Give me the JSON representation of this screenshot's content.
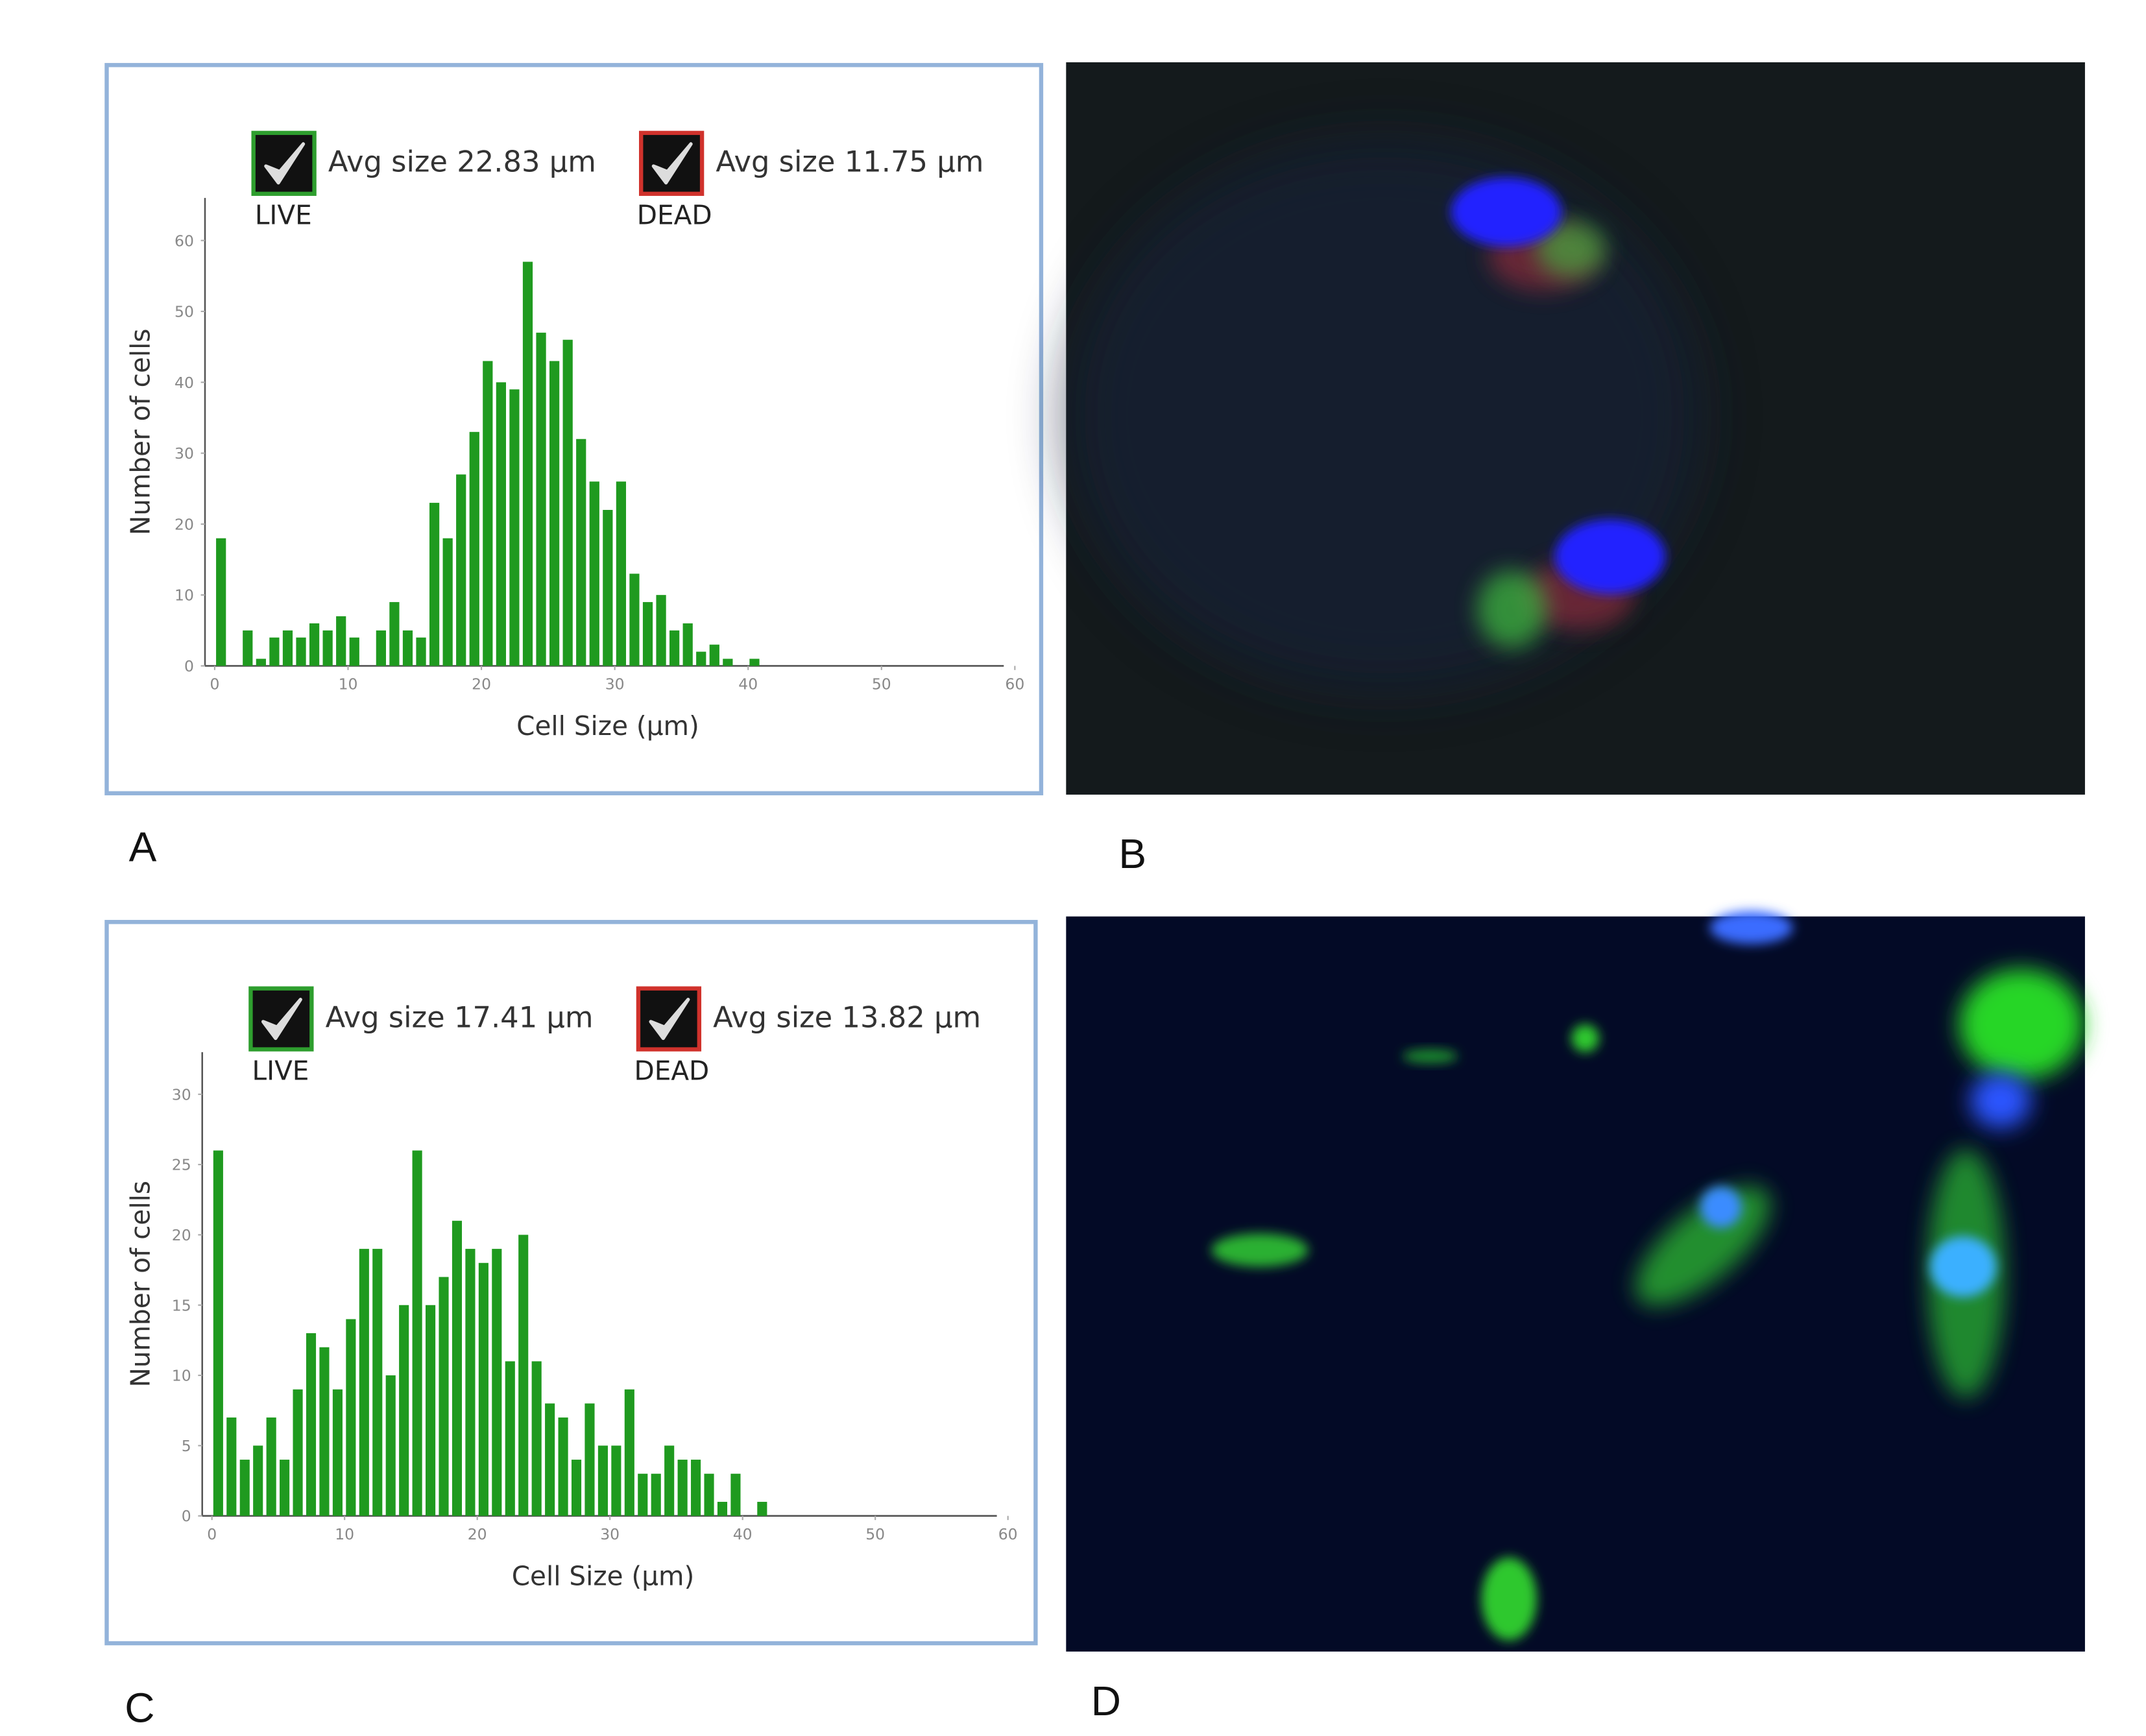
{
  "chart_data": [
    {
      "type": "histogram",
      "x_label": "Cell Size (µm)",
      "y_label": "Number of cells",
      "legend": [
        {
          "name": "LIVE",
          "text": "Avg size 22.83 µm",
          "color": "#2e9e2e"
        },
        {
          "name": "DEAD",
          "text": "Avg size 11.75 µm",
          "color": "#d0322c"
        }
      ],
      "color": "#1f9a1f",
      "bins": [
        0,
        1,
        2,
        3,
        4,
        5,
        6,
        7,
        8,
        9,
        10,
        11,
        12,
        13,
        14,
        15,
        16,
        17,
        18,
        19,
        20,
        21,
        22,
        23,
        24,
        25,
        26,
        27,
        28,
        29,
        30,
        31,
        32,
        33,
        34,
        35,
        36,
        37,
        38,
        39,
        40,
        41
      ],
      "values": [
        18,
        0,
        5,
        1,
        4,
        5,
        4,
        6,
        5,
        7,
        4,
        0,
        5,
        9,
        5,
        4,
        23,
        18,
        27,
        33,
        43,
        40,
        39,
        57,
        47,
        43,
        46,
        32,
        26,
        22,
        26,
        13,
        9,
        10,
        5,
        6,
        2,
        3,
        1,
        0,
        1
      ],
      "xlim": [
        0,
        60
      ],
      "xticks": [
        0,
        10,
        20,
        30,
        40,
        50,
        60
      ],
      "ylim": [
        0,
        66
      ],
      "yticks": [
        0,
        10,
        20,
        30,
        40,
        50,
        60
      ]
    },
    {
      "type": "histogram",
      "x_label": "Cell Size (µm)",
      "y_label": "Number of cells",
      "legend": [
        {
          "name": "LIVE",
          "text": "Avg size 17.41 µm",
          "color": "#2e9e2e"
        },
        {
          "name": "DEAD",
          "text": "Avg size 13.82 µm",
          "color": "#d0322c"
        }
      ],
      "color": "#1f9a1f",
      "bins": [
        0,
        1,
        2,
        3,
        4,
        5,
        6,
        7,
        8,
        9,
        10,
        11,
        12,
        13,
        14,
        15,
        16,
        17,
        18,
        19,
        20,
        21,
        22,
        23,
        24,
        25,
        26,
        27,
        28,
        29,
        30,
        31,
        32,
        33,
        34,
        35,
        36,
        37,
        38,
        39,
        40,
        41,
        42
      ],
      "values": [
        26,
        7,
        4,
        5,
        7,
        4,
        9,
        13,
        12,
        9,
        14,
        19,
        19,
        10,
        15,
        26,
        15,
        17,
        21,
        19,
        18,
        19,
        11,
        20,
        11,
        8,
        7,
        4,
        8,
        5,
        5,
        9,
        3,
        3,
        5,
        4,
        4,
        3,
        1,
        3,
        0,
        1
      ],
      "xlim": [
        0,
        60
      ],
      "xticks": [
        0,
        10,
        20,
        30,
        40,
        50,
        60
      ],
      "ylim": [
        0,
        33
      ],
      "yticks": [
        0,
        5,
        10,
        15,
        20,
        25,
        30
      ]
    }
  ],
  "panel_labels": [
    "A",
    "B",
    "C",
    "D"
  ]
}
